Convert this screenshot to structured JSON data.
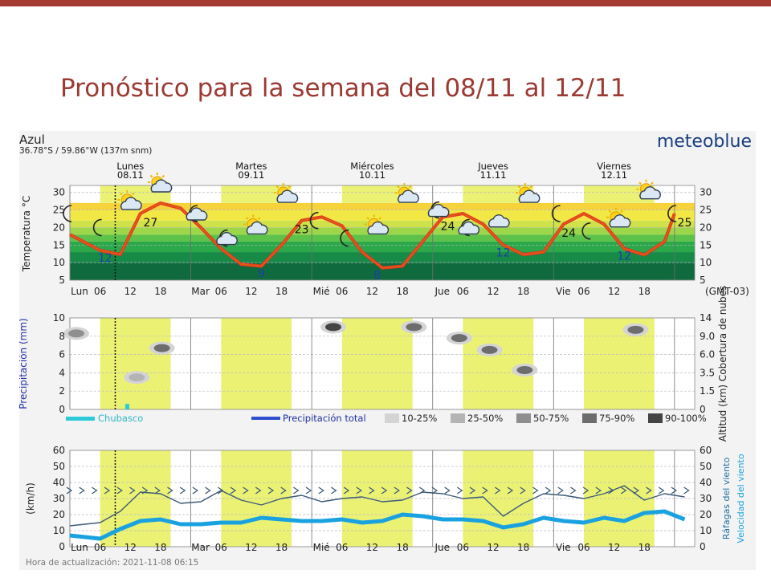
{
  "slide": {
    "title": "Pronóstico para la semana del 08/11 al 12/11",
    "accent_color": "#a63b34",
    "title_color": "#9b3a33"
  },
  "meteogram": {
    "location_name": "Azul",
    "coordinates": "36.78°S / 59.86°W (137m snm)",
    "brand": "meteoblue",
    "update_label": "Hora de actualización: 2021-11-08 06:15",
    "timezone_label": "(GMT-03)",
    "days": [
      {
        "name": "Lunes",
        "date": "08.11"
      },
      {
        "name": "Martes",
        "date": "09.11"
      },
      {
        "name": "Miércoles",
        "date": "10.11"
      },
      {
        "name": "Jueves",
        "date": "11.11"
      },
      {
        "name": "Viernes",
        "date": "12.11"
      }
    ],
    "x_tick_labels": [
      "Lun",
      "06",
      "12",
      "18",
      "Mar",
      "06",
      "12",
      "18",
      "Mié",
      "06",
      "12",
      "18",
      "Jue",
      "06",
      "12",
      "18",
      "Vie",
      "06",
      "12",
      "18"
    ]
  },
  "chart_data": [
    {
      "type": "line",
      "title": "",
      "ylabel": "Temperatura °C",
      "ylim": [
        5,
        32
      ],
      "yticks": [
        5,
        10,
        15,
        20,
        25,
        30
      ],
      "x_unit": "hours since Lun 00:00",
      "series": [
        {
          "name": "",
          "color": "#e05a10",
          "x": [
            0,
            6,
            10,
            14,
            18,
            22,
            26,
            30,
            34,
            38,
            42,
            46,
            50,
            54,
            58,
            62,
            66,
            70,
            74,
            78,
            82,
            86,
            90,
            94,
            98,
            102,
            106,
            110,
            114,
            118,
            120
          ],
          "y": [
            18,
            13.5,
            12.3,
            24,
            27,
            25.5,
            20,
            14,
            9.5,
            9,
            15,
            22,
            23,
            20.5,
            13,
            8.5,
            9,
            16,
            23,
            24,
            21,
            15,
            12.3,
            13,
            21,
            24,
            21,
            14,
            12.2,
            16,
            24
          ]
        }
      ],
      "data_labels": [
        {
          "text": "12",
          "x": 7,
          "color": "#1b3ea8"
        },
        {
          "text": "27",
          "x": 16,
          "color": "#111111"
        },
        {
          "text": "9",
          "x": 38,
          "color": "#1b3ea8"
        },
        {
          "text": "23",
          "x": 46,
          "color": "#111111"
        },
        {
          "text": "8",
          "x": 61,
          "color": "#1b3ea8"
        },
        {
          "text": "24",
          "x": 75,
          "color": "#111111"
        },
        {
          "text": "12",
          "x": 86,
          "color": "#1b3ea8"
        },
        {
          "text": "24",
          "x": 99,
          "color": "#111111"
        },
        {
          "text": "12",
          "x": 110,
          "color": "#1b3ea8"
        },
        {
          "text": "25",
          "x": 122,
          "color": "#111111"
        }
      ],
      "weather_icons": [
        {
          "name": "moon-icon",
          "x": 0,
          "temp": 24
        },
        {
          "name": "moon-icon",
          "x": 6,
          "temp": 20
        },
        {
          "name": "sun-cloud-icon",
          "x": 12,
          "temp": 27
        },
        {
          "name": "sun-cloud-icon",
          "x": 18,
          "temp": 32
        },
        {
          "name": "moon-cloud-icon",
          "x": 25,
          "temp": 24
        },
        {
          "name": "moon-cloud-icon",
          "x": 31,
          "temp": 17
        },
        {
          "name": "sun-cloud-icon",
          "x": 37,
          "temp": 20
        },
        {
          "name": "sun-cloud-icon",
          "x": 43,
          "temp": 29
        },
        {
          "name": "moon-icon",
          "x": 49,
          "temp": 22
        },
        {
          "name": "moon-icon",
          "x": 55,
          "temp": 17
        },
        {
          "name": "sun-cloud-icon",
          "x": 61,
          "temp": 20
        },
        {
          "name": "sun-cloud-icon",
          "x": 67,
          "temp": 29
        },
        {
          "name": "moon-cloud-icon",
          "x": 73,
          "temp": 25
        },
        {
          "name": "moon-cloud-icon",
          "x": 79,
          "temp": 20
        },
        {
          "name": "cloud-icon",
          "x": 85,
          "temp": 22
        },
        {
          "name": "sun-cloud-icon",
          "x": 91,
          "temp": 29
        },
        {
          "name": "moon-icon",
          "x": 97,
          "temp": 24
        },
        {
          "name": "moon-icon",
          "x": 103,
          "temp": 19
        },
        {
          "name": "sun-cloud-icon",
          "x": 109,
          "temp": 22
        },
        {
          "name": "sun-cloud-icon",
          "x": 115,
          "temp": 30
        },
        {
          "name": "moon-icon",
          "x": 120,
          "temp": 24
        }
      ]
    },
    {
      "type": "area",
      "title": "",
      "ylabel": "Precipitación (mm)",
      "ylim": [
        0,
        10
      ],
      "yticks": [
        0,
        2,
        4,
        6,
        8,
        10
      ],
      "y2label": "Altitud (km) Cobertura de nubes",
      "y2ticks": [
        "0",
        "1.5",
        "3.5",
        "6.0",
        "9.0",
        "14"
      ],
      "legend": [
        {
          "label": "Chubasco",
          "color": "#2cc9d8"
        },
        {
          "label": "Precipitación total",
          "color": "#2f4fd0"
        },
        {
          "label": "10-25%",
          "color": "#d4d4d4"
        },
        {
          "label": "25-50%",
          "color": "#b4b4b4"
        },
        {
          "label": "50-75%",
          "color": "#8f8f8f"
        },
        {
          "label": "75-90%",
          "color": "#6d6d6d"
        },
        {
          "label": "90-100%",
          "color": "#444444"
        }
      ],
      "cloud_patches": [
        {
          "x": 0,
          "level": 8.3,
          "shade": "#8f8f8f"
        },
        {
          "x": 12,
          "level": 3.5,
          "shade": "#b4b4b4"
        },
        {
          "x": 17,
          "level": 6.7,
          "shade": "#6d6d6d"
        },
        {
          "x": 51,
          "level": 9.0,
          "shade": "#444444"
        },
        {
          "x": 67,
          "level": 9.0,
          "shade": "#6d6d6d"
        },
        {
          "x": 76,
          "level": 7.8,
          "shade": "#6d6d6d"
        },
        {
          "x": 82,
          "level": 6.5,
          "shade": "#6d6d6d"
        },
        {
          "x": 89,
          "level": 4.3,
          "shade": "#6d6d6d"
        },
        {
          "x": 111,
          "level": 8.7,
          "shade": "#6d6d6d"
        }
      ],
      "showers": [
        {
          "x": 11,
          "value": 0.2
        }
      ]
    },
    {
      "type": "line",
      "title": "",
      "ylabel": "(km/h)",
      "ylim": [
        0,
        60
      ],
      "yticks": [
        0,
        10,
        20,
        30,
        40,
        50,
        60
      ],
      "y2label": "Ráfagas del viento Velocidad del viento",
      "x_unit": "hours since Lun 00:00",
      "series": [
        {
          "name": "Ráfagas del viento",
          "color": "#3d5a7a",
          "x": [
            0,
            6,
            10,
            14,
            18,
            22,
            26,
            30,
            34,
            38,
            42,
            46,
            50,
            54,
            58,
            62,
            66,
            70,
            74,
            78,
            82,
            86,
            90,
            94,
            98,
            102,
            106,
            110,
            114,
            118,
            122
          ],
          "y": [
            13,
            15,
            22,
            34,
            33,
            27,
            28,
            35,
            29,
            26,
            30,
            32,
            28,
            30,
            31,
            28,
            29,
            34,
            33,
            30,
            31,
            19,
            27,
            33,
            32,
            30,
            33,
            38,
            29,
            33,
            31
          ]
        },
        {
          "name": "Velocidad del viento",
          "color": "#1aa2e0",
          "x": [
            0,
            6,
            10,
            14,
            18,
            22,
            26,
            30,
            34,
            38,
            42,
            46,
            50,
            54,
            58,
            62,
            66,
            70,
            74,
            78,
            82,
            86,
            90,
            94,
            98,
            102,
            106,
            110,
            114,
            118,
            122
          ],
          "y": [
            7,
            5,
            11,
            16,
            17,
            14,
            14,
            15,
            15,
            18,
            17,
            16,
            16,
            17,
            15,
            16,
            20,
            19,
            17,
            17,
            16,
            12,
            14,
            18,
            16,
            15,
            18,
            16,
            21,
            22,
            17
          ]
        }
      ],
      "direction_row_level": 35
    }
  ]
}
